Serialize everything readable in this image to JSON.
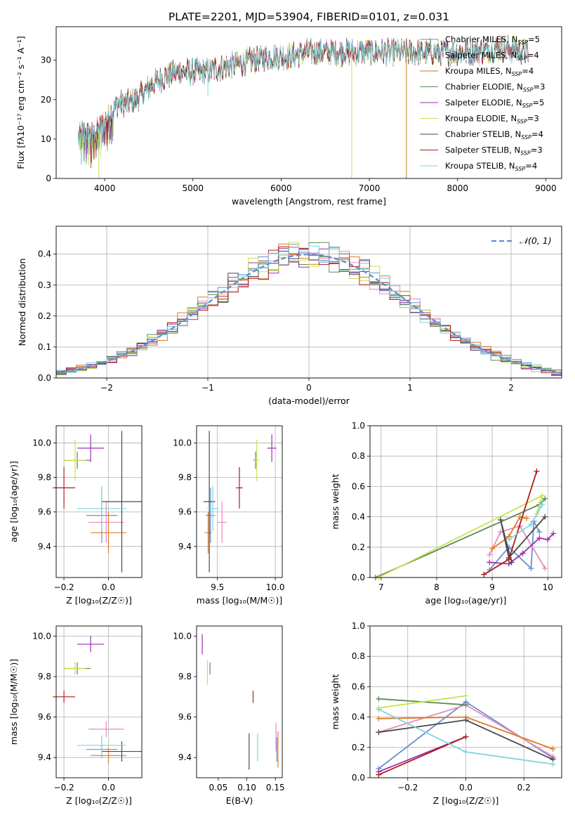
{
  "figure_title": "PLATE=2201, MJD=53904, FIBERID=0101, z=0.031",
  "model_colors": {
    "Chabrier MILES": "#6a8fd0",
    "Salpeter MILES": "#e68bbd",
    "Kroupa MILES": "#c9791a",
    "Chabrier ELODIE": "#5c8a5a",
    "Salpeter ELODIE": "#9b2fae",
    "Kroupa ELODIE": "#c8e24a",
    "Chabrier STELIB": "#4a4a4a",
    "Salpeter STELIB": "#b01c1c",
    "Kroupa STELIB": "#7fd4dc",
    "Normal": "#5b8fd4",
    "orange": "#e07a28"
  },
  "chart_data": [
    {
      "id": "spectrum",
      "type": "line",
      "xlabel": "wavelength [Angstrom, rest frame]",
      "ylabel": "Flux [fλ10⁻¹⁷ erg cm⁻² s⁻¹ A⁻¹]",
      "xlim": [
        3450,
        9180
      ],
      "ylim": [
        0,
        38.5
      ],
      "xticks": [
        4000,
        5000,
        6000,
        7000,
        8000,
        9000
      ],
      "yticks": [
        0,
        10,
        20,
        30
      ],
      "grid": false,
      "legend_position": "top-right",
      "legend": [
        {
          "label": "Chabrier MILES, N",
          "sub": "SSP",
          "tail": "=5",
          "model": "Chabrier MILES"
        },
        {
          "label": "Salpeter MILES, N",
          "sub": "SSP",
          "tail": "=4",
          "model": "Salpeter MILES"
        },
        {
          "label": "Kroupa MILES, N",
          "sub": "SSP",
          "tail": "=4",
          "model": "Kroupa MILES"
        },
        {
          "label": "Chabrier ELODIE, N",
          "sub": "SSP",
          "tail": "=3",
          "model": "Chabrier ELODIE"
        },
        {
          "label": "Salpeter ELODIE, N",
          "sub": "SSP",
          "tail": "=5",
          "model": "Salpeter ELODIE"
        },
        {
          "label": "Kroupa ELODIE, N",
          "sub": "SSP",
          "tail": "=3",
          "model": "Kroupa ELODIE"
        },
        {
          "label": "Chabrier STELIB, N",
          "sub": "SSP",
          "tail": "=4",
          "model": "Chabrier STELIB"
        },
        {
          "label": "Salpeter STELIB, N",
          "sub": "SSP",
          "tail": "=3",
          "model": "Salpeter STELIB"
        },
        {
          "label": "Kroupa STELIB, N",
          "sub": "SSP",
          "tail": "=4",
          "model": "Kroupa STELIB"
        }
      ],
      "continuum": [
        [
          3700,
          10
        ],
        [
          3750,
          12
        ],
        [
          3850,
          11
        ],
        [
          3950,
          13
        ],
        [
          4050,
          16
        ],
        [
          4150,
          19
        ],
        [
          4250,
          19
        ],
        [
          4350,
          20
        ],
        [
          4450,
          22
        ],
        [
          4550,
          24
        ],
        [
          4700,
          26
        ],
        [
          4850,
          27
        ],
        [
          5000,
          27
        ],
        [
          5150,
          27
        ],
        [
          5300,
          28
        ],
        [
          5500,
          29
        ],
        [
          5700,
          30
        ],
        [
          5900,
          31
        ],
        [
          6100,
          31
        ],
        [
          6300,
          32
        ],
        [
          6500,
          32
        ],
        [
          6700,
          32
        ],
        [
          6900,
          32
        ],
        [
          7100,
          32
        ],
        [
          7300,
          32
        ],
        [
          7500,
          32
        ],
        [
          7700,
          32
        ],
        [
          7900,
          32
        ],
        [
          8100,
          32
        ],
        [
          8300,
          32.5
        ],
        [
          8500,
          33
        ],
        [
          8700,
          32.5
        ],
        [
          8800,
          32
        ]
      ],
      "dips": [
        {
          "x": 3934,
          "y": 0,
          "model": "Kroupa ELODIE"
        },
        {
          "x": 5170,
          "y": 21,
          "model": "Kroupa STELIB"
        },
        {
          "x": 6800,
          "y": 0,
          "model": "Kroupa ELODIE"
        },
        {
          "x": 7420,
          "y": 0,
          "model": "Kroupa MILES"
        }
      ]
    },
    {
      "id": "residuals",
      "type": "histogram",
      "xlabel": "(data-model)/error",
      "ylabel": "Normed distribution",
      "xlim": [
        -2.5,
        2.5
      ],
      "ylim": [
        0,
        0.49
      ],
      "xticks": [
        -2,
        -1,
        0,
        1,
        2
      ],
      "yticks": [
        0.0,
        0.1,
        0.2,
        0.3,
        0.4
      ],
      "grid": true,
      "legend_position": "top-right",
      "legend": [
        {
          "label": "𝒩(0, 1)",
          "model": "Normal"
        }
      ],
      "bin_width": 0.1,
      "bin_range": [
        -2.5,
        2.5
      ]
    },
    {
      "id": "age_vs_Z",
      "type": "errorbar",
      "xlabel": "Z [log₁₀(Z/Z☉)]",
      "ylabel": "age  [log₁₀(age/yr)]",
      "xlim": [
        -0.235,
        0.15
      ],
      "ylim": [
        9.22,
        10.1
      ],
      "xticks": [
        -0.2,
        0.0
      ],
      "yticks": [
        9.4,
        9.6,
        9.8,
        10.0
      ],
      "grid": true,
      "points": [
        {
          "model": "Chabrier MILES",
          "x": -0.03,
          "y": 9.58,
          "xerr": 0.07,
          "yerr": 0.16
        },
        {
          "model": "Salpeter MILES",
          "x": -0.01,
          "y": 9.54,
          "xerr": 0.08,
          "yerr": 0.12
        },
        {
          "model": "Kroupa MILES",
          "x": 0.0,
          "y": 9.48,
          "xerr": 0.08,
          "yerr": 0.12
        },
        {
          "model": "Chabrier ELODIE",
          "x": -0.14,
          "y": 9.9,
          "xerr": 0.06,
          "yerr": 0.05
        },
        {
          "model": "Salpeter ELODIE",
          "x": -0.08,
          "y": 9.97,
          "xerr": 0.06,
          "yerr": 0.08
        },
        {
          "model": "Kroupa ELODIE",
          "x": -0.15,
          "y": 9.9,
          "xerr": 0.05,
          "yerr": 0.12
        },
        {
          "model": "Chabrier STELIB",
          "x": 0.06,
          "y": 9.66,
          "xerr": 0.09,
          "yerr": 0.41
        },
        {
          "model": "Salpeter STELIB",
          "x": -0.2,
          "y": 9.74,
          "xerr": 0.05,
          "yerr": 0.12
        },
        {
          "model": "Kroupa STELIB",
          "x": -0.03,
          "y": 9.62,
          "xerr": 0.11,
          "yerr": 0.13
        }
      ]
    },
    {
      "id": "age_vs_mass",
      "type": "errorbar",
      "xlabel": "mass [log₁₀(M/M☉)]",
      "ylabel": "",
      "xlim": [
        9.32,
        10.06
      ],
      "ylim": [
        9.22,
        10.1
      ],
      "xticks": [
        9.5,
        10.0
      ],
      "yticks": [
        9.4,
        9.6,
        9.8,
        10.0
      ],
      "grid": true,
      "points": [
        {
          "model": "Chabrier MILES",
          "x": 9.44,
          "y": 9.58,
          "xerr": 0.04,
          "yerr": 0.16
        },
        {
          "model": "Salpeter MILES",
          "x": 9.54,
          "y": 9.54,
          "xerr": 0.04,
          "yerr": 0.12
        },
        {
          "model": "Kroupa MILES",
          "x": 9.42,
          "y": 9.48,
          "xerr": 0.03,
          "yerr": 0.12
        },
        {
          "model": "Chabrier ELODIE",
          "x": 9.83,
          "y": 9.9,
          "xerr": 0.02,
          "yerr": 0.05
        },
        {
          "model": "Salpeter ELODIE",
          "x": 9.97,
          "y": 9.97,
          "xerr": 0.04,
          "yerr": 0.08
        },
        {
          "model": "Kroupa ELODIE",
          "x": 9.84,
          "y": 9.9,
          "xerr": 0.02,
          "yerr": 0.12
        },
        {
          "model": "Chabrier STELIB",
          "x": 9.43,
          "y": 9.66,
          "xerr": 0.05,
          "yerr": 0.41
        },
        {
          "model": "Salpeter STELIB",
          "x": 9.69,
          "y": 9.74,
          "xerr": 0.03,
          "yerr": 0.12
        },
        {
          "model": "Kroupa STELIB",
          "x": 9.46,
          "y": 9.62,
          "xerr": 0.05,
          "yerr": 0.13
        }
      ]
    },
    {
      "id": "mass_weight_vs_age",
      "type": "line",
      "xlabel": "age  [log₁₀(age/yr)]",
      "ylabel": "mass weight",
      "xlim": [
        6.8,
        10.25
      ],
      "ylim": [
        0,
        1
      ],
      "xticks": [
        7,
        8,
        9,
        10
      ],
      "yticks": [
        0.0,
        0.2,
        0.4,
        0.6,
        0.8,
        1.0
      ],
      "grid": true,
      "series": [
        {
          "model": "Chabrier MILES",
          "points": [
            [
              8.95,
              0.05
            ],
            [
              9.3,
              0.2
            ],
            [
              9.7,
              0.06
            ],
            [
              9.75,
              0.37
            ],
            [
              9.85,
              0.3
            ]
          ]
        },
        {
          "model": "Salpeter MILES",
          "points": [
            [
              8.95,
              0.15
            ],
            [
              9.15,
              0.3
            ],
            [
              9.5,
              0.34
            ],
            [
              9.95,
              0.06
            ]
          ]
        },
        {
          "model": "Kroupa MILES",
          "points": [
            [
              9.0,
              0.19
            ],
            [
              9.3,
              0.27
            ],
            [
              9.5,
              0.4
            ],
            [
              9.62,
              0.39
            ]
          ]
        },
        {
          "model": "Chabrier ELODIE",
          "points": [
            [
              6.9,
              0.0
            ],
            [
              9.85,
              0.48
            ],
            [
              9.95,
              0.52
            ]
          ]
        },
        {
          "model": "Salpeter ELODIE",
          "points": [
            [
              8.95,
              0.1
            ],
            [
              9.3,
              0.09
            ],
            [
              9.55,
              0.16
            ],
            [
              9.85,
              0.26
            ],
            [
              10.0,
              0.25
            ],
            [
              10.1,
              0.29
            ]
          ]
        },
        {
          "model": "Kroupa ELODIE",
          "points": [
            [
              6.95,
              0.0
            ],
            [
              9.9,
              0.54
            ],
            [
              9.8,
              0.42
            ]
          ]
        },
        {
          "model": "Chabrier STELIB",
          "points": [
            [
              9.35,
              0.1
            ],
            [
              9.15,
              0.38
            ],
            [
              9.3,
              0.13
            ],
            [
              9.95,
              0.4
            ]
          ]
        },
        {
          "model": "Salpeter STELIB",
          "points": [
            [
              8.85,
              0.02
            ],
            [
              9.3,
              0.12
            ],
            [
              9.8,
              0.7
            ]
          ]
        },
        {
          "model": "Kroupa STELIB",
          "points": [
            [
              9.3,
              0.25
            ],
            [
              9.7,
              0.35
            ],
            [
              9.9,
              0.48
            ]
          ]
        }
      ]
    },
    {
      "id": "mass_vs_Z",
      "type": "errorbar",
      "xlabel": "Z [log₁₀(Z/Z☉)]",
      "ylabel": "mass [log₁₀(M/M☉)]",
      "xlim": [
        -0.235,
        0.15
      ],
      "ylim": [
        9.3,
        10.05
      ],
      "xticks": [
        -0.2,
        0.0
      ],
      "yticks": [
        9.4,
        9.6,
        9.8,
        10.0
      ],
      "grid": true,
      "points": [
        {
          "model": "Chabrier MILES",
          "x": -0.03,
          "y": 9.44,
          "xerr": 0.07,
          "yerr": 0.04
        },
        {
          "model": "Salpeter MILES",
          "x": -0.01,
          "y": 9.54,
          "xerr": 0.08,
          "yerr": 0.04
        },
        {
          "model": "Kroupa MILES",
          "x": 0.0,
          "y": 9.41,
          "xerr": 0.08,
          "yerr": 0.04
        },
        {
          "model": "Chabrier ELODIE",
          "x": -0.14,
          "y": 9.84,
          "xerr": 0.06,
          "yerr": 0.03
        },
        {
          "model": "Salpeter ELODIE",
          "x": -0.08,
          "y": 9.96,
          "xerr": 0.06,
          "yerr": 0.04
        },
        {
          "model": "Kroupa ELODIE",
          "x": -0.15,
          "y": 9.84,
          "xerr": 0.05,
          "yerr": 0.03
        },
        {
          "model": "Chabrier STELIB",
          "x": 0.06,
          "y": 9.43,
          "xerr": 0.09,
          "yerr": 0.05
        },
        {
          "model": "Salpeter STELIB",
          "x": -0.2,
          "y": 9.7,
          "xerr": 0.05,
          "yerr": 0.03
        },
        {
          "model": "Kroupa STELIB",
          "x": -0.03,
          "y": 9.46,
          "xerr": 0.11,
          "yerr": 0.05
        }
      ]
    },
    {
      "id": "mass_vs_ebv",
      "type": "errorbar",
      "xlabel": "E(B-V)",
      "ylabel": "",
      "xlim": [
        0.012,
        0.162
      ],
      "ylim": [
        9.3,
        10.05
      ],
      "xticks": [
        0.05,
        0.1,
        0.15
      ],
      "xticklabels": [
        "0.05",
        "0.10",
        "0.15"
      ],
      "yticks": [
        9.4,
        9.6,
        9.8,
        10.0
      ],
      "grid": false,
      "points": [
        {
          "model": "Chabrier MILES",
          "x": 0.1525,
          "y": 9.44,
          "xerr": 0,
          "yerr": 0.06
        },
        {
          "model": "Salpeter MILES",
          "x": 0.151,
          "y": 9.5,
          "xerr": 0,
          "yerr": 0.07
        },
        {
          "model": "Kroupa MILES",
          "x": 0.1545,
          "y": 9.44,
          "xerr": 0,
          "yerr": 0.09
        },
        {
          "model": "Chabrier ELODIE",
          "x": 0.0355,
          "y": 9.84,
          "xerr": 0,
          "yerr": 0.03
        },
        {
          "model": "Salpeter ELODIE",
          "x": 0.022,
          "y": 9.96,
          "xerr": 0,
          "yerr": 0.05
        },
        {
          "model": "Kroupa ELODIE",
          "x": 0.031,
          "y": 9.82,
          "xerr": 0,
          "yerr": 0.06
        },
        {
          "model": "Chabrier STELIB",
          "x": 0.104,
          "y": 9.43,
          "xerr": 0,
          "yerr": 0.09
        },
        {
          "model": "Salpeter STELIB",
          "x": 0.111,
          "y": 9.7,
          "xerr": 0,
          "yerr": 0.03
        },
        {
          "model": "Kroupa STELIB",
          "x": 0.119,
          "y": 9.45,
          "xerr": 0,
          "yerr": 0.07
        }
      ]
    },
    {
      "id": "mass_weight_vs_Z",
      "type": "line",
      "xlabel": "Z [log₁₀(Z/Z☉)]",
      "ylabel": "mass weight",
      "xlim": [
        -0.33,
        0.33
      ],
      "ylim": [
        0,
        1
      ],
      "xticks": [
        -0.2,
        0.0,
        0.2
      ],
      "yticks": [
        0.0,
        0.2,
        0.4,
        0.6,
        0.8,
        1.0
      ],
      "grid": true,
      "series": [
        {
          "model": "Chabrier MILES",
          "points": [
            [
              -0.3,
              0.06
            ],
            [
              0.0,
              0.5
            ],
            [
              0.3,
              0.13
            ]
          ]
        },
        {
          "model": "Salpeter MILES",
          "points": [
            [
              -0.3,
              0.3
            ],
            [
              0.0,
              0.48
            ],
            [
              0.3,
              0.14
            ]
          ]
        },
        {
          "model": "Kroupa MILES",
          "points": [
            [
              -0.3,
              0.39
            ],
            [
              0.0,
              0.4
            ],
            [
              0.3,
              0.19
            ]
          ]
        },
        {
          "model": "Chabrier ELODIE",
          "points": [
            [
              -0.3,
              0.52
            ],
            [
              0.0,
              0.48
            ]
          ]
        },
        {
          "model": "Salpeter ELODIE",
          "points": [
            [
              -0.3,
              0.04
            ],
            [
              0.0,
              0.27
            ]
          ]
        },
        {
          "model": "Kroupa ELODIE",
          "points": [
            [
              -0.3,
              0.46
            ],
            [
              0.0,
              0.54
            ]
          ]
        },
        {
          "model": "Chabrier STELIB",
          "points": [
            [
              -0.3,
              0.3
            ],
            [
              0.0,
              0.38
            ],
            [
              0.3,
              0.12
            ]
          ]
        },
        {
          "model": "Salpeter STELIB",
          "points": [
            [
              -0.3,
              0.02
            ],
            [
              0.0,
              0.27
            ]
          ]
        },
        {
          "model": "Kroupa STELIB",
          "points": [
            [
              -0.3,
              0.45
            ],
            [
              0.0,
              0.17
            ],
            [
              0.3,
              0.09
            ]
          ]
        }
      ]
    }
  ]
}
